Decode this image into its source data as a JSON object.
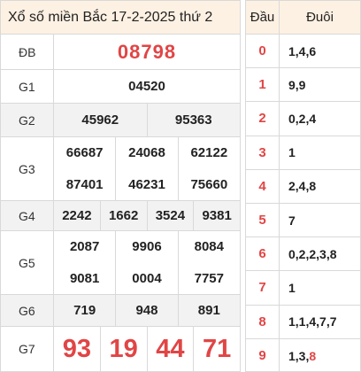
{
  "title": "Xổ số miền Bắc 17-2-2025 thứ 2",
  "prizes": {
    "db": {
      "label": "ĐB",
      "numbers": [
        "08798"
      ]
    },
    "g1": {
      "label": "G1",
      "numbers": [
        "04520"
      ]
    },
    "g2": {
      "label": "G2",
      "numbers": [
        "45962",
        "95363"
      ]
    },
    "g3": {
      "label": "G3",
      "numbers": [
        "66687",
        "24068",
        "62122",
        "87401",
        "46231",
        "75660"
      ]
    },
    "g4": {
      "label": "G4",
      "numbers": [
        "2242",
        "1662",
        "3524",
        "9381"
      ]
    },
    "g5": {
      "label": "G5",
      "numbers": [
        "2087",
        "9906",
        "8084",
        "9081",
        "0004",
        "7757"
      ]
    },
    "g6": {
      "label": "G6",
      "numbers": [
        "719",
        "948",
        "891"
      ]
    },
    "g7": {
      "label": "G7",
      "numbers": [
        "93",
        "19",
        "44",
        "71"
      ]
    }
  },
  "heads": {
    "header_dau": "Đầu",
    "header_duoi": "Đuôi",
    "rows": [
      {
        "dau": "0",
        "duoi": "1,4,6"
      },
      {
        "dau": "1",
        "duoi": "9,9"
      },
      {
        "dau": "2",
        "duoi": "0,2,4"
      },
      {
        "dau": "3",
        "duoi": "1"
      },
      {
        "dau": "4",
        "duoi": "2,4,8"
      },
      {
        "dau": "5",
        "duoi": "7"
      },
      {
        "dau": "6",
        "duoi": "0,2,2,3,8"
      },
      {
        "dau": "7",
        "duoi": "1"
      },
      {
        "dau": "8",
        "duoi": "1,1,4,7,7"
      },
      {
        "dau": "9",
        "duoi_prefix": "1,3,",
        "duoi_highlight": "8"
      }
    ]
  },
  "colors": {
    "accent": "#e14545",
    "header_bg": "#fdf1e3",
    "alt_row": "#f2f2f2"
  }
}
